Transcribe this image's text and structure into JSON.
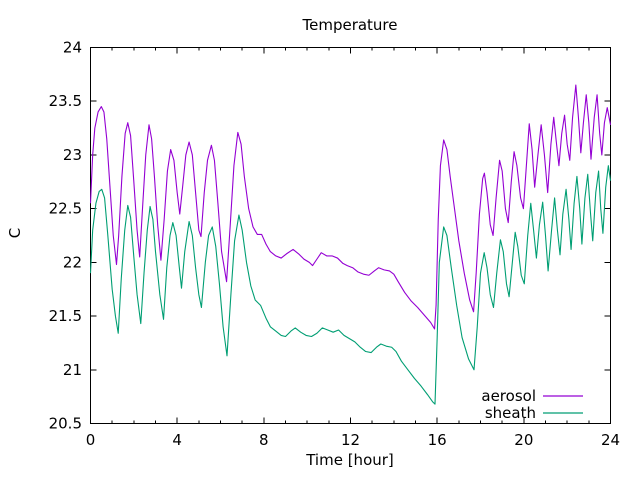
{
  "window": {
    "background": "#ffffff",
    "text_color": "#000000"
  },
  "chart": {
    "title": "Temperature",
    "xlabel": "Time [hour]",
    "ylabel": "C"
  },
  "chart_data": {
    "type": "line",
    "title": "Temperature",
    "xlabel": "Time [hour]",
    "ylabel": "C",
    "xlim": [
      0,
      24
    ],
    "ylim": [
      20.5,
      24
    ],
    "grid": false,
    "legend_position": "inside-bottom-right",
    "axis_color": "#000000",
    "x_major_ticks": [
      {
        "value": 0,
        "label": "0"
      },
      {
        "value": 4,
        "label": "4"
      },
      {
        "value": 8,
        "label": "8"
      },
      {
        "value": 12,
        "label": "12"
      },
      {
        "value": 16,
        "label": "16"
      },
      {
        "value": 20,
        "label": "20"
      },
      {
        "value": 24,
        "label": "24"
      }
    ],
    "x_minor_step": 1,
    "y_major_ticks": [
      {
        "value": 20.5,
        "label": "20.5"
      },
      {
        "value": 21,
        "label": "21"
      },
      {
        "value": 21.5,
        "label": "21.5"
      },
      {
        "value": 22,
        "label": "22"
      },
      {
        "value": 22.5,
        "label": "22.5"
      },
      {
        "value": 23,
        "label": "23"
      },
      {
        "value": 23.5,
        "label": "23.5"
      },
      {
        "value": 24,
        "label": "24"
      }
    ],
    "series": [
      {
        "name": "aerosol",
        "color": "#9400d3",
        "points": [
          [
            0,
            22.55
          ],
          [
            0.1,
            23.0
          ],
          [
            0.2,
            23.25
          ],
          [
            0.35,
            23.4
          ],
          [
            0.5,
            23.45
          ],
          [
            0.62,
            23.4
          ],
          [
            0.75,
            23.15
          ],
          [
            0.9,
            22.7
          ],
          [
            1.05,
            22.25
          ],
          [
            1.2,
            21.98
          ],
          [
            1.3,
            22.25
          ],
          [
            1.45,
            22.8
          ],
          [
            1.6,
            23.2
          ],
          [
            1.72,
            23.3
          ],
          [
            1.85,
            23.18
          ],
          [
            2.0,
            22.75
          ],
          [
            2.15,
            22.3
          ],
          [
            2.27,
            22.05
          ],
          [
            2.4,
            22.5
          ],
          [
            2.55,
            23.0
          ],
          [
            2.7,
            23.28
          ],
          [
            2.82,
            23.15
          ],
          [
            2.95,
            22.8
          ],
          [
            3.1,
            22.35
          ],
          [
            3.25,
            22.02
          ],
          [
            3.4,
            22.4
          ],
          [
            3.55,
            22.85
          ],
          [
            3.7,
            23.05
          ],
          [
            3.85,
            22.95
          ],
          [
            4.0,
            22.65
          ],
          [
            4.12,
            22.45
          ],
          [
            4.25,
            22.7
          ],
          [
            4.4,
            23.0
          ],
          [
            4.55,
            23.12
          ],
          [
            4.7,
            23.0
          ],
          [
            4.85,
            22.65
          ],
          [
            5.0,
            22.3
          ],
          [
            5.1,
            22.24
          ],
          [
            5.25,
            22.65
          ],
          [
            5.4,
            22.95
          ],
          [
            5.58,
            23.09
          ],
          [
            5.72,
            22.95
          ],
          [
            5.88,
            22.55
          ],
          [
            6.05,
            22.1
          ],
          [
            6.28,
            21.82
          ],
          [
            6.45,
            22.35
          ],
          [
            6.62,
            22.9
          ],
          [
            6.8,
            23.21
          ],
          [
            6.95,
            23.1
          ],
          [
            7.1,
            22.8
          ],
          [
            7.3,
            22.5
          ],
          [
            7.5,
            22.33
          ],
          [
            7.7,
            22.26
          ],
          [
            7.9,
            22.26
          ],
          [
            8.1,
            22.17
          ],
          [
            8.3,
            22.1
          ],
          [
            8.55,
            22.06
          ],
          [
            8.8,
            22.04
          ],
          [
            9.05,
            22.08
          ],
          [
            9.35,
            22.12
          ],
          [
            9.6,
            22.08
          ],
          [
            9.85,
            22.03
          ],
          [
            10.1,
            22.0
          ],
          [
            10.25,
            21.97
          ],
          [
            10.45,
            22.03
          ],
          [
            10.65,
            22.09
          ],
          [
            10.9,
            22.06
          ],
          [
            11.15,
            22.06
          ],
          [
            11.4,
            22.04
          ],
          [
            11.65,
            21.99
          ],
          [
            11.85,
            21.97
          ],
          [
            12.1,
            21.95
          ],
          [
            12.35,
            21.91
          ],
          [
            12.6,
            21.89
          ],
          [
            12.85,
            21.88
          ],
          [
            13.1,
            21.92
          ],
          [
            13.3,
            21.95
          ],
          [
            13.55,
            21.93
          ],
          [
            13.8,
            21.92
          ],
          [
            14.0,
            21.89
          ],
          [
            14.2,
            21.82
          ],
          [
            14.5,
            21.72
          ],
          [
            14.8,
            21.64
          ],
          [
            15.1,
            21.58
          ],
          [
            15.4,
            21.51
          ],
          [
            15.7,
            21.44
          ],
          [
            15.88,
            21.38
          ],
          [
            15.95,
            21.6
          ],
          [
            16.05,
            22.4
          ],
          [
            16.15,
            22.9
          ],
          [
            16.3,
            23.14
          ],
          [
            16.45,
            23.05
          ],
          [
            16.6,
            22.8
          ],
          [
            16.8,
            22.5
          ],
          [
            17.0,
            22.2
          ],
          [
            17.25,
            21.9
          ],
          [
            17.5,
            21.65
          ],
          [
            17.68,
            21.54
          ],
          [
            17.8,
            21.9
          ],
          [
            17.95,
            22.45
          ],
          [
            18.1,
            22.78
          ],
          [
            18.18,
            22.83
          ],
          [
            18.3,
            22.65
          ],
          [
            18.45,
            22.35
          ],
          [
            18.58,
            22.25
          ],
          [
            18.72,
            22.6
          ],
          [
            18.88,
            22.95
          ],
          [
            19.0,
            22.85
          ],
          [
            19.15,
            22.5
          ],
          [
            19.28,
            22.37
          ],
          [
            19.42,
            22.75
          ],
          [
            19.55,
            23.03
          ],
          [
            19.68,
            22.9
          ],
          [
            19.85,
            22.6
          ],
          [
            19.98,
            22.5
          ],
          [
            20.1,
            22.85
          ],
          [
            20.25,
            23.29
          ],
          [
            20.38,
            23.05
          ],
          [
            20.5,
            22.7
          ],
          [
            20.65,
            23.0
          ],
          [
            20.8,
            23.28
          ],
          [
            20.95,
            23.0
          ],
          [
            21.1,
            22.65
          ],
          [
            21.25,
            23.1
          ],
          [
            21.38,
            23.35
          ],
          [
            21.5,
            23.12
          ],
          [
            21.62,
            22.9
          ],
          [
            21.75,
            23.2
          ],
          [
            21.88,
            23.37
          ],
          [
            22.0,
            23.1
          ],
          [
            22.12,
            22.95
          ],
          [
            22.25,
            23.35
          ],
          [
            22.4,
            23.65
          ],
          [
            22.52,
            23.35
          ],
          [
            22.63,
            23.02
          ],
          [
            22.75,
            23.3
          ],
          [
            22.88,
            23.56
          ],
          [
            23.0,
            23.3
          ],
          [
            23.1,
            22.96
          ],
          [
            23.25,
            23.35
          ],
          [
            23.38,
            23.56
          ],
          [
            23.5,
            23.2
          ],
          [
            23.6,
            23.0
          ],
          [
            23.72,
            23.3
          ],
          [
            23.85,
            23.44
          ],
          [
            24.0,
            23.28
          ]
        ]
      },
      {
        "name": "sheath",
        "color": "#009e73",
        "points": [
          [
            0,
            21.9
          ],
          [
            0.1,
            22.3
          ],
          [
            0.25,
            22.55
          ],
          [
            0.4,
            22.66
          ],
          [
            0.52,
            22.68
          ],
          [
            0.65,
            22.6
          ],
          [
            0.8,
            22.25
          ],
          [
            1.0,
            21.75
          ],
          [
            1.15,
            21.5
          ],
          [
            1.28,
            21.34
          ],
          [
            1.42,
            21.85
          ],
          [
            1.58,
            22.3
          ],
          [
            1.72,
            22.53
          ],
          [
            1.85,
            22.42
          ],
          [
            2.0,
            22.05
          ],
          [
            2.15,
            21.7
          ],
          [
            2.32,
            21.43
          ],
          [
            2.47,
            21.9
          ],
          [
            2.62,
            22.3
          ],
          [
            2.75,
            22.52
          ],
          [
            2.88,
            22.4
          ],
          [
            3.0,
            22.1
          ],
          [
            3.2,
            21.7
          ],
          [
            3.37,
            21.47
          ],
          [
            3.52,
            21.95
          ],
          [
            3.67,
            22.25
          ],
          [
            3.8,
            22.37
          ],
          [
            3.95,
            22.25
          ],
          [
            4.1,
            21.95
          ],
          [
            4.2,
            21.76
          ],
          [
            4.35,
            22.1
          ],
          [
            4.55,
            22.38
          ],
          [
            4.7,
            22.25
          ],
          [
            4.85,
            21.95
          ],
          [
            5.0,
            21.7
          ],
          [
            5.12,
            21.58
          ],
          [
            5.3,
            22.0
          ],
          [
            5.45,
            22.25
          ],
          [
            5.62,
            22.33
          ],
          [
            5.78,
            22.15
          ],
          [
            5.95,
            21.8
          ],
          [
            6.12,
            21.4
          ],
          [
            6.3,
            21.13
          ],
          [
            6.48,
            21.7
          ],
          [
            6.65,
            22.2
          ],
          [
            6.85,
            22.44
          ],
          [
            7.0,
            22.3
          ],
          [
            7.2,
            22.0
          ],
          [
            7.4,
            21.78
          ],
          [
            7.6,
            21.65
          ],
          [
            7.85,
            21.6
          ],
          [
            8.1,
            21.48
          ],
          [
            8.3,
            21.4
          ],
          [
            8.55,
            21.36
          ],
          [
            8.8,
            21.32
          ],
          [
            9.0,
            21.31
          ],
          [
            9.25,
            21.36
          ],
          [
            9.45,
            21.39
          ],
          [
            9.7,
            21.35
          ],
          [
            9.95,
            21.32
          ],
          [
            10.2,
            21.31
          ],
          [
            10.45,
            21.34
          ],
          [
            10.7,
            21.39
          ],
          [
            10.95,
            21.37
          ],
          [
            11.2,
            21.35
          ],
          [
            11.45,
            21.37
          ],
          [
            11.7,
            21.32
          ],
          [
            11.95,
            21.29
          ],
          [
            12.2,
            21.26
          ],
          [
            12.45,
            21.21
          ],
          [
            12.7,
            21.17
          ],
          [
            12.95,
            21.16
          ],
          [
            13.2,
            21.21
          ],
          [
            13.4,
            21.24
          ],
          [
            13.65,
            21.22
          ],
          [
            13.9,
            21.21
          ],
          [
            14.1,
            21.17
          ],
          [
            14.35,
            21.08
          ],
          [
            14.65,
            21.0
          ],
          [
            14.95,
            20.92
          ],
          [
            15.25,
            20.85
          ],
          [
            15.55,
            20.77
          ],
          [
            15.8,
            20.7
          ],
          [
            15.9,
            20.68
          ],
          [
            16.0,
            21.3
          ],
          [
            16.1,
            22.0
          ],
          [
            16.3,
            22.33
          ],
          [
            16.45,
            22.25
          ],
          [
            16.65,
            21.95
          ],
          [
            16.9,
            21.6
          ],
          [
            17.15,
            21.3
          ],
          [
            17.45,
            21.1
          ],
          [
            17.7,
            21.0
          ],
          [
            17.85,
            21.4
          ],
          [
            18.0,
            21.9
          ],
          [
            18.17,
            22.09
          ],
          [
            18.3,
            21.95
          ],
          [
            18.45,
            21.7
          ],
          [
            18.6,
            21.58
          ],
          [
            18.75,
            21.9
          ],
          [
            18.92,
            22.21
          ],
          [
            19.05,
            22.1
          ],
          [
            19.2,
            21.8
          ],
          [
            19.32,
            21.68
          ],
          [
            19.47,
            22.0
          ],
          [
            19.6,
            22.28
          ],
          [
            19.72,
            22.15
          ],
          [
            19.88,
            21.88
          ],
          [
            20.02,
            21.8
          ],
          [
            20.18,
            22.25
          ],
          [
            20.32,
            22.55
          ],
          [
            20.45,
            22.3
          ],
          [
            20.58,
            22.04
          ],
          [
            20.72,
            22.35
          ],
          [
            20.87,
            22.56
          ],
          [
            21.0,
            22.25
          ],
          [
            21.12,
            21.92
          ],
          [
            21.28,
            22.3
          ],
          [
            21.42,
            22.6
          ],
          [
            21.55,
            22.3
          ],
          [
            21.67,
            22.07
          ],
          [
            21.8,
            22.45
          ],
          [
            21.95,
            22.68
          ],
          [
            22.08,
            22.4
          ],
          [
            22.18,
            22.12
          ],
          [
            22.32,
            22.55
          ],
          [
            22.45,
            22.8
          ],
          [
            22.58,
            22.5
          ],
          [
            22.68,
            22.17
          ],
          [
            22.82,
            22.6
          ],
          [
            22.95,
            22.82
          ],
          [
            23.08,
            22.45
          ],
          [
            23.18,
            22.2
          ],
          [
            23.32,
            22.65
          ],
          [
            23.45,
            22.85
          ],
          [
            23.55,
            22.5
          ],
          [
            23.65,
            22.27
          ],
          [
            23.78,
            22.7
          ],
          [
            23.9,
            22.9
          ],
          [
            24.0,
            22.76
          ]
        ]
      }
    ]
  }
}
